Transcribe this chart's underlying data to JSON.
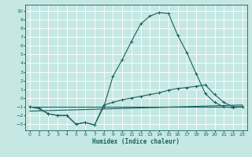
{
  "background_color": "#c5e8e4",
  "grid_color": "#ffffff",
  "line_color": "#1a6060",
  "xlabel": "Humidex (Indice chaleur)",
  "xlim": [
    -0.5,
    23.5
  ],
  "ylim": [
    -3.7,
    10.7
  ],
  "xticks": [
    0,
    1,
    2,
    3,
    4,
    5,
    6,
    7,
    8,
    9,
    10,
    11,
    12,
    13,
    14,
    15,
    16,
    17,
    18,
    19,
    20,
    21,
    22,
    23
  ],
  "yticks": [
    -3,
    -2,
    -1,
    0,
    1,
    2,
    3,
    4,
    5,
    6,
    7,
    8,
    9,
    10
  ],
  "curve1_x": [
    0,
    1,
    2,
    3,
    4,
    5,
    6,
    7,
    8,
    9,
    10,
    11,
    12,
    13,
    14,
    15,
    16,
    17,
    18,
    19,
    20,
    21,
    22,
    23
  ],
  "curve1_y": [
    -1.0,
    -1.2,
    -1.8,
    -2.0,
    -2.0,
    -3.0,
    -2.8,
    -3.1,
    -1.0,
    2.5,
    4.4,
    6.5,
    8.5,
    9.4,
    9.8,
    9.7,
    7.2,
    5.2,
    2.8,
    0.5,
    -0.5,
    -1.0,
    -1.1,
    -1.0
  ],
  "curve2_x": [
    0,
    1,
    2,
    3,
    4,
    5,
    6,
    7,
    8,
    9,
    10,
    11,
    12,
    13,
    14,
    15,
    16,
    17,
    18,
    19,
    20,
    21,
    22,
    23
  ],
  "curve2_y": [
    -1.0,
    -1.2,
    -1.8,
    -2.0,
    -2.0,
    -3.0,
    -2.8,
    -3.1,
    -0.8,
    -0.5,
    -0.2,
    0.0,
    0.2,
    0.4,
    0.6,
    0.9,
    1.1,
    1.2,
    1.35,
    1.5,
    0.4,
    -0.5,
    -1.0,
    -1.0
  ],
  "curve3_x": [
    0,
    23
  ],
  "curve3_y": [
    -1.0,
    -1.0
  ],
  "curve4_x": [
    0,
    23
  ],
  "curve4_y": [
    -1.5,
    -0.8
  ]
}
